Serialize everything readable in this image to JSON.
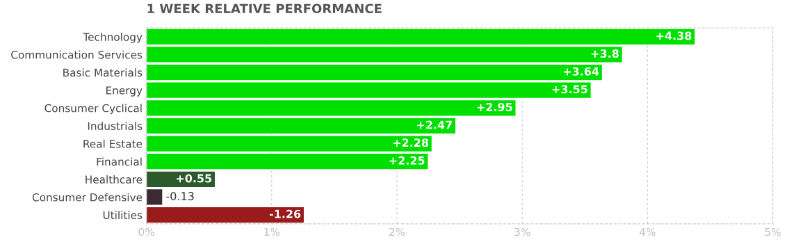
{
  "chart_data": {
    "type": "bar",
    "orientation": "horizontal",
    "title": "1 WEEK RELATIVE PERFORMANCE",
    "categories": [
      "Technology",
      "Communication Services",
      "Basic Materials",
      "Energy",
      "Consumer Cyclical",
      "Industrials",
      "Real Estate",
      "Financial",
      "Healthcare",
      "Consumer Defensive",
      "Utilities"
    ],
    "values": [
      4.38,
      3.8,
      3.64,
      3.55,
      2.95,
      2.47,
      2.28,
      2.25,
      0.55,
      -0.13,
      -1.26
    ],
    "base": [
      0,
      0,
      0,
      0,
      0,
      0,
      0,
      0,
      0,
      0.13,
      1.26
    ],
    "colors": [
      "#00e000",
      "#00e000",
      "#00e000",
      "#00e000",
      "#00e000",
      "#00e000",
      "#00e000",
      "#00e000",
      "#2b5a2b",
      "#3b2a32",
      "#9b1a1a"
    ],
    "value_labels": [
      "+4.38",
      "+3.8",
      "+3.64",
      "+3.55",
      "+2.95",
      "+2.47",
      "+2.28",
      "+2.25",
      "+0.55",
      "-0.13",
      "-1.26"
    ],
    "xlim": [
      0,
      5
    ],
    "xticks": [
      {
        "value": 0,
        "label": "0%"
      },
      {
        "value": 1,
        "label": "1%"
      },
      {
        "value": 2,
        "label": "2%"
      },
      {
        "value": 3,
        "label": "3%"
      },
      {
        "value": 4,
        "label": "4%"
      },
      {
        "value": 5,
        "label": "5%"
      }
    ],
    "grid": "x",
    "legend": false
  }
}
